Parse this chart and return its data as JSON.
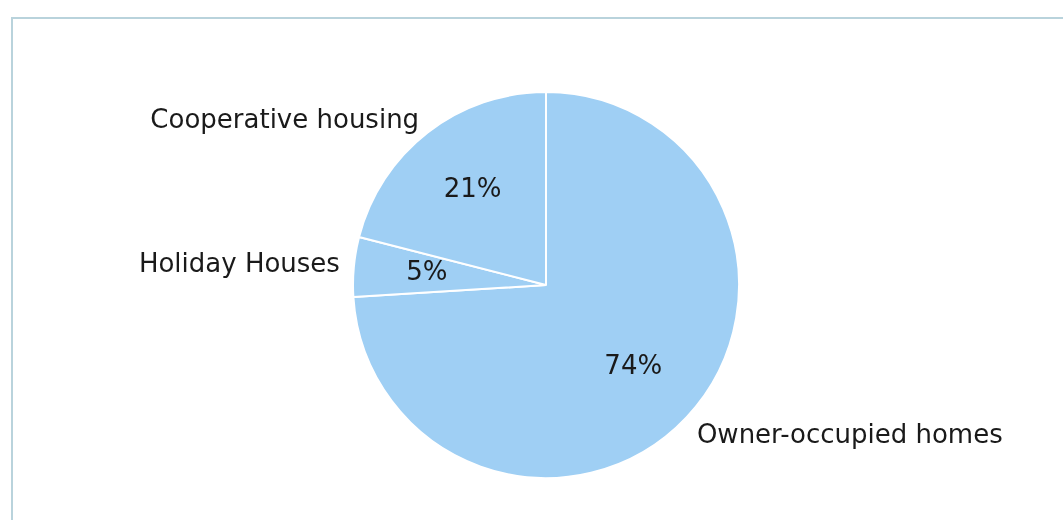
{
  "chart_data": {
    "type": "pie",
    "categories": [
      "Owner-occupied homes",
      "Holiday Houses",
      "Cooperative housing"
    ],
    "values": [
      74,
      5,
      21
    ],
    "colors": [
      "#9fcff4",
      "#9fcff4",
      "#9fcff4"
    ],
    "value_labels": [
      "74%",
      "5%",
      "21%"
    ],
    "legend": false
  }
}
